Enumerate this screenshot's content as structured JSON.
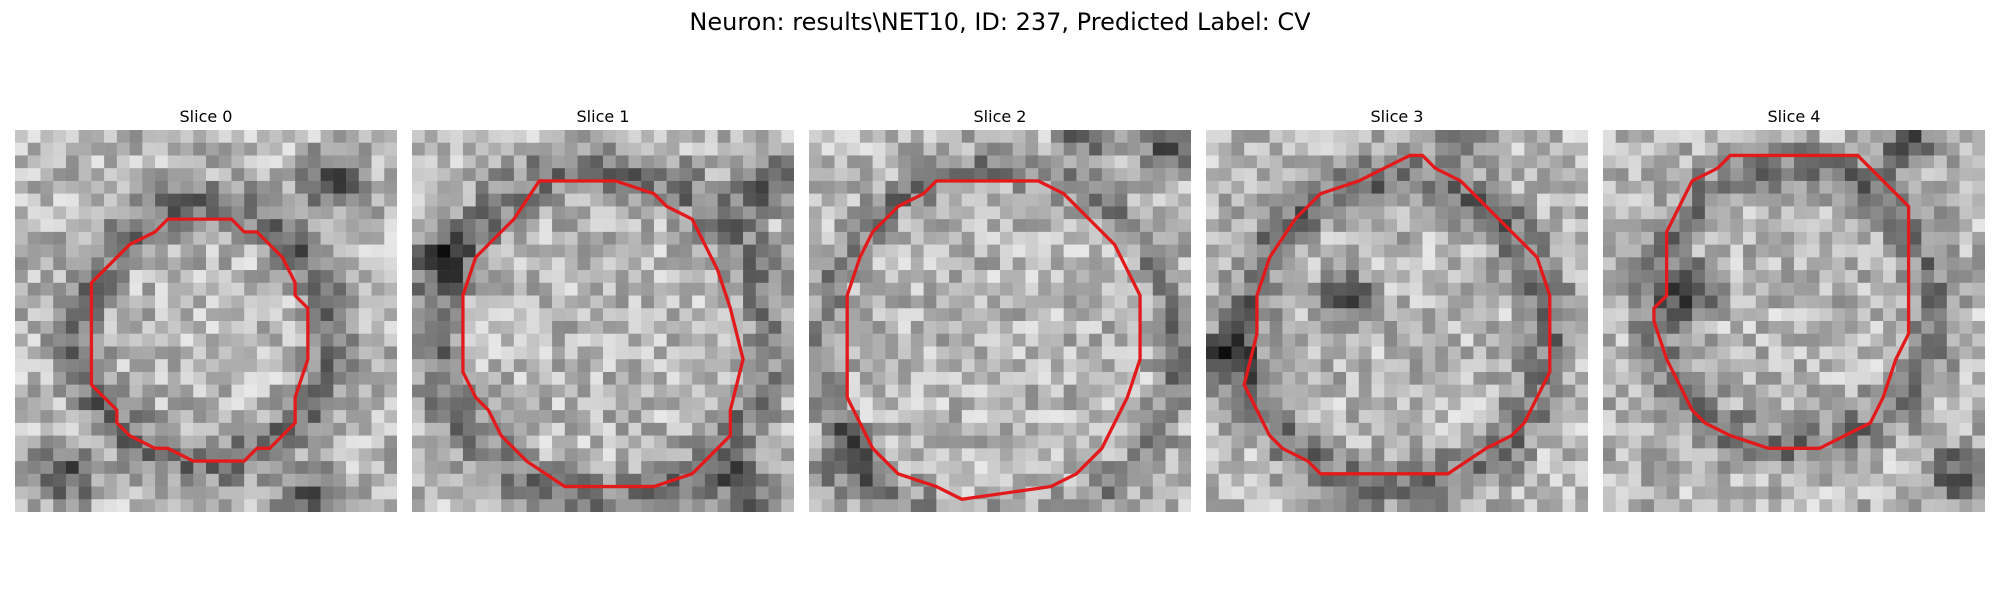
{
  "figure": {
    "title": "Neuron: results\\NET10, ID: 237, Predicted Label: CV",
    "colormap": "grayscale",
    "contour_color": "#e31a1c",
    "grid_size": 30,
    "slices": [
      {
        "title": "Slice 0",
        "contour": [
          [
            12,
            7
          ],
          [
            17,
            7
          ],
          [
            18,
            8
          ],
          [
            19,
            8
          ],
          [
            21,
            10
          ],
          [
            22,
            12
          ],
          [
            22,
            13
          ],
          [
            23,
            14
          ],
          [
            23,
            15
          ],
          [
            23,
            18
          ],
          [
            22,
            21
          ],
          [
            22,
            23
          ],
          [
            21,
            24
          ],
          [
            20,
            25
          ],
          [
            19,
            25
          ],
          [
            18,
            26
          ],
          [
            14,
            26
          ],
          [
            12,
            25
          ],
          [
            11,
            25
          ],
          [
            9,
            24
          ],
          [
            8,
            23
          ],
          [
            8,
            22
          ],
          [
            7,
            21
          ],
          [
            6,
            20
          ],
          [
            6,
            12
          ],
          [
            7,
            11
          ],
          [
            8,
            10
          ],
          [
            9,
            9
          ],
          [
            11,
            8
          ]
        ],
        "shading": {
          "darkness": 0.9,
          "ring_center": [
            15,
            16
          ],
          "ring_radius": 10,
          "ring_width": 3,
          "corner_dark": [
            [
              25,
              4
            ],
            [
              23,
              29
            ],
            [
              4,
              27
            ]
          ]
        }
      },
      {
        "title": "Slice 1",
        "contour": [
          [
            10,
            4
          ],
          [
            16,
            4
          ],
          [
            19,
            5
          ],
          [
            20,
            6
          ],
          [
            22,
            7
          ],
          [
            23,
            9
          ],
          [
            24,
            11
          ],
          [
            25,
            14
          ],
          [
            26,
            18
          ],
          [
            25,
            22
          ],
          [
            25,
            24
          ],
          [
            24,
            25
          ],
          [
            22,
            27
          ],
          [
            19,
            28
          ],
          [
            12,
            28
          ],
          [
            9,
            26
          ],
          [
            7,
            24
          ],
          [
            6,
            22
          ],
          [
            5,
            21
          ],
          [
            4,
            19
          ],
          [
            4,
            13
          ],
          [
            5,
            10
          ],
          [
            7,
            8
          ],
          [
            8,
            7
          ]
        ],
        "shading": {
          "darkness": 0.8,
          "ring_center": [
            15,
            16
          ],
          "ring_radius": 13,
          "ring_width": 3,
          "corner_dark": [
            [
              2,
              10
            ],
            [
              28,
              4
            ],
            [
              26,
              28
            ]
          ]
        }
      },
      {
        "title": "Slice 2",
        "contour": [
          [
            10,
            4
          ],
          [
            18,
            4
          ],
          [
            20,
            5
          ],
          [
            22,
            7
          ],
          [
            24,
            9
          ],
          [
            25,
            11
          ],
          [
            26,
            13
          ],
          [
            26,
            18
          ],
          [
            25,
            21
          ],
          [
            24,
            23
          ],
          [
            23,
            25
          ],
          [
            21,
            27
          ],
          [
            19,
            28
          ],
          [
            12,
            29
          ],
          [
            10,
            28
          ],
          [
            7,
            27
          ],
          [
            5,
            25
          ],
          [
            4,
            23
          ],
          [
            3,
            21
          ],
          [
            3,
            13
          ],
          [
            4,
            10
          ],
          [
            5,
            8
          ],
          [
            7,
            6
          ],
          [
            9,
            5
          ]
        ],
        "shading": {
          "darkness": 0.75,
          "ring_center": [
            15,
            17
          ],
          "ring_radius": 14,
          "ring_width": 2,
          "corner_dark": [
            [
              22,
              0
            ],
            [
              28,
              1
            ],
            [
              3,
              26
            ]
          ]
        }
      },
      {
        "title": "Slice 3",
        "contour": [
          [
            16,
            2
          ],
          [
            17,
            2
          ],
          [
            18,
            3
          ],
          [
            20,
            4
          ],
          [
            22,
            6
          ],
          [
            24,
            8
          ],
          [
            26,
            10
          ],
          [
            27,
            13
          ],
          [
            27,
            19
          ],
          [
            26,
            21
          ],
          [
            25,
            23
          ],
          [
            24,
            24
          ],
          [
            22,
            25
          ],
          [
            19,
            27
          ],
          [
            9,
            27
          ],
          [
            8,
            26
          ],
          [
            6,
            25
          ],
          [
            5,
            24
          ],
          [
            4,
            22
          ],
          [
            3,
            20
          ],
          [
            4,
            16
          ],
          [
            4,
            13
          ],
          [
            5,
            10
          ],
          [
            7,
            7
          ],
          [
            9,
            5
          ],
          [
            12,
            4
          ],
          [
            14,
            3
          ]
        ],
        "shading": {
          "darkness": 0.85,
          "ring_center": [
            15,
            16
          ],
          "ring_radius": 12,
          "ring_width": 3,
          "corner_dark": [
            [
              1,
              18
            ],
            [
              20,
              0
            ],
            [
              11,
              13
            ]
          ]
        }
      },
      {
        "title": "Slice 4",
        "contour": [
          [
            10,
            2
          ],
          [
            20,
            2
          ],
          [
            21,
            3
          ],
          [
            22,
            4
          ],
          [
            23,
            5
          ],
          [
            24,
            6
          ],
          [
            24,
            16
          ],
          [
            23,
            18
          ],
          [
            22,
            21
          ],
          [
            21,
            23
          ],
          [
            19,
            24
          ],
          [
            17,
            25
          ],
          [
            13,
            25
          ],
          [
            10,
            24
          ],
          [
            8,
            23
          ],
          [
            7,
            22
          ],
          [
            6,
            20
          ],
          [
            5,
            18
          ],
          [
            4,
            15
          ],
          [
            4,
            14
          ],
          [
            5,
            13
          ],
          [
            5,
            8
          ],
          [
            6,
            6
          ],
          [
            7,
            4
          ],
          [
            9,
            3
          ]
        ],
        "shading": {
          "darkness": 0.8,
          "ring_center": [
            15,
            14
          ],
          "ring_radius": 11,
          "ring_width": 3,
          "corner_dark": [
            [
              24,
              1
            ],
            [
              28,
              27
            ],
            [
              7,
              13
            ]
          ]
        }
      }
    ]
  }
}
